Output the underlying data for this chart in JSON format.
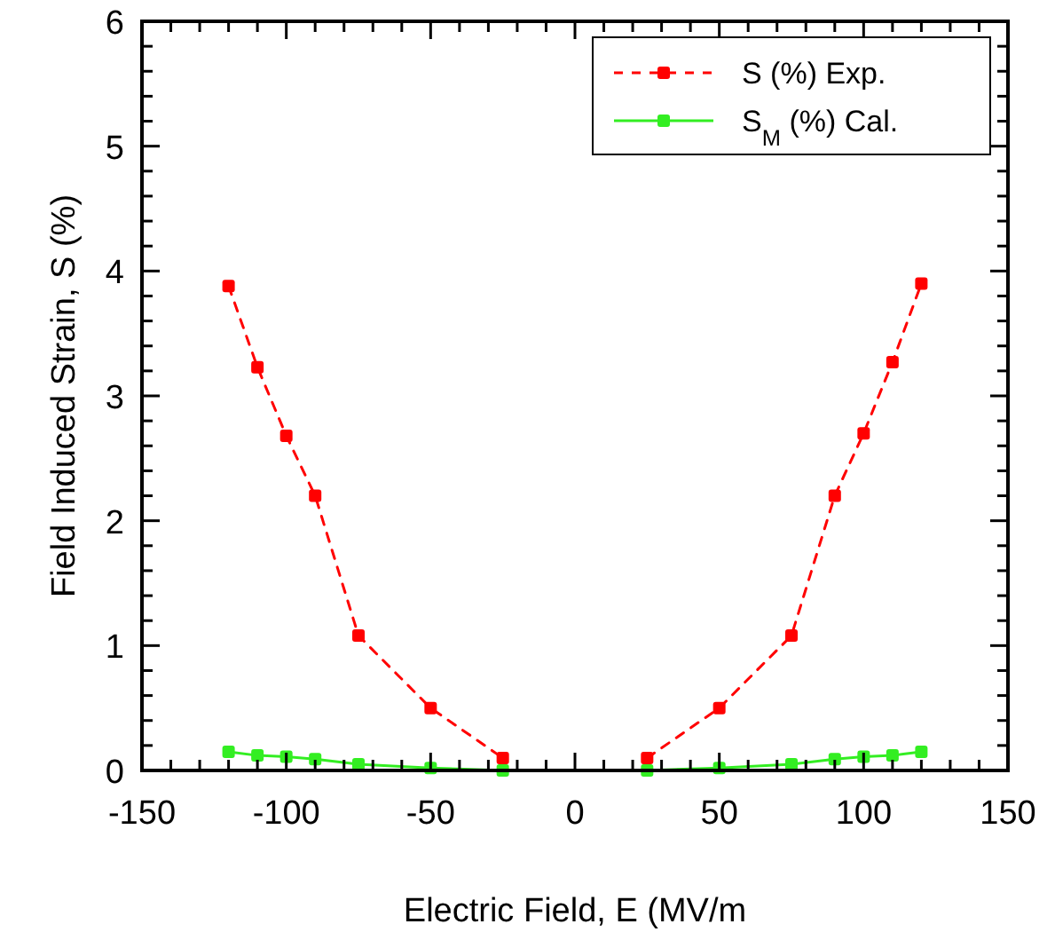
{
  "chart_data": {
    "type": "line",
    "xlabel": "Electric Field, E (MV/m",
    "ylabel": "Field Induced Strain, S  (%)",
    "x": [
      -120,
      -110,
      -100,
      -90,
      -75,
      -50,
      -25
    ],
    "series": [
      {
        "name": "S (%) Exp.",
        "color": "#ff0000",
        "line_style": "dashed",
        "marker": "square",
        "values": [
          3.88,
          3.23,
          2.68,
          2.2,
          1.08,
          0.5,
          0.1
        ]
      },
      {
        "name": "S$_{M}$ (%) Cal.",
        "color": "#33ee22",
        "line_style": "solid",
        "marker": "square",
        "values": [
          0.15,
          0.12,
          0.11,
          0.09,
          0.05,
          0.02,
          0
        ]
      },
      {
        "color": "#ff0000",
        "line_style": "dashed",
        "marker": "square",
        "x": [
          25,
          50,
          75,
          90,
          100,
          110,
          120
        ],
        "values": [
          0.1,
          0.5,
          1.08,
          2.2,
          2.7,
          3.27,
          3.9
        ]
      },
      {
        "color": "#33ee22",
        "line_style": "solid",
        "marker": "square",
        "x": [
          25,
          50,
          75,
          90,
          100,
          110,
          120
        ],
        "values": [
          0,
          0.02,
          0.05,
          0.09,
          0.11,
          0.12,
          0.15
        ]
      }
    ],
    "xlim": [
      -150,
      150
    ],
    "xticks": [
      -150,
      {
        "value": -140,
        "label": null
      },
      {
        "value": -130,
        "label": null
      },
      {
        "value": -120,
        "label": null
      },
      {
        "value": -110,
        "label": null
      },
      -100,
      {
        "value": -90,
        "label": null
      },
      {
        "value": -80,
        "label": null
      },
      {
        "value": -70,
        "label": null
      },
      {
        "value": -60,
        "label": null
      },
      -50,
      {
        "value": -40,
        "label": null
      },
      {
        "value": -30,
        "label": null
      },
      {
        "value": -20,
        "label": null
      },
      {
        "value": -10,
        "label": null
      },
      0,
      {
        "value": 10,
        "label": null
      },
      {
        "value": 20,
        "label": null
      },
      {
        "value": 30,
        "label": null
      },
      {
        "value": 40,
        "label": null
      },
      50,
      {
        "value": 60,
        "label": null
      },
      {
        "value": 70,
        "label": null
      },
      {
        "value": 80,
        "label": null
      },
      {
        "value": 90,
        "label": null
      },
      100,
      {
        "value": 110,
        "label": null
      },
      {
        "value": 120,
        "label": null
      },
      {
        "value": 130,
        "label": null
      },
      {
        "value": 140,
        "label": null
      },
      150
    ],
    "ylim": [
      0,
      6
    ],
    "yticks": [
      0,
      {
        "value": 0.2,
        "label": null
      },
      {
        "value": 0.4,
        "label": null
      },
      {
        "value": 0.6,
        "label": null
      },
      {
        "value": 0.8,
        "label": null
      },
      1,
      {
        "value": 1.2,
        "label": null
      },
      {
        "value": 1.4,
        "label": null
      },
      {
        "value": 1.6,
        "label": null
      },
      {
        "value": 1.8,
        "label": null
      },
      2,
      {
        "value": 2.2,
        "label": null
      },
      {
        "value": 2.4,
        "label": null
      },
      {
        "value": 2.6,
        "label": null
      },
      {
        "value": 2.8,
        "label": null
      },
      3,
      {
        "value": 3.2,
        "label": null
      },
      {
        "value": 3.4,
        "label": null
      },
      {
        "value": 3.6,
        "label": null
      },
      {
        "value": 3.8,
        "label": null
      },
      4,
      {
        "value": 4.2,
        "label": null
      },
      {
        "value": 4.4,
        "label": null
      },
      {
        "value": 4.6,
        "label": null
      },
      {
        "value": 4.8,
        "label": null
      },
      5,
      {
        "value": 5.2,
        "label": null
      },
      {
        "value": 5.4,
        "label": null
      },
      {
        "value": 5.6,
        "label": null
      },
      {
        "value": 5.8,
        "label": null
      },
      6
    ],
    "grid": false,
    "legend": "top right"
  }
}
